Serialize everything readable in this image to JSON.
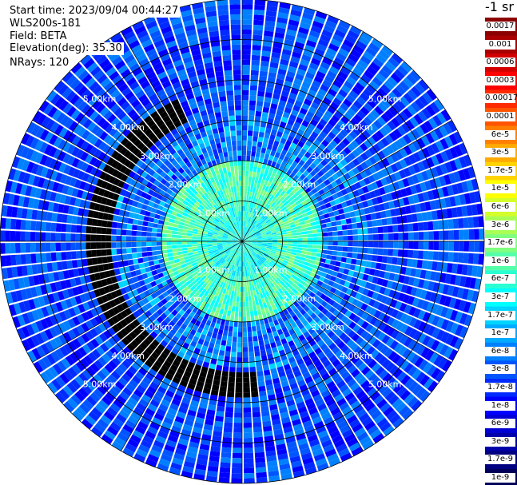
{
  "info": {
    "start_time": "Start time: 2023/09/04 00:44:27",
    "instrument": "WLS200s-181",
    "field": "Field: BETA",
    "elevation": "Elevation(deg): 35.30",
    "nrays": "NRays: 120"
  },
  "chart_data": {
    "type": "heatmap",
    "projection": "polar PPI scan",
    "field": "BETA",
    "n_rays": 120,
    "elevation_deg": 35.3,
    "range_unit": "km",
    "range_max_km": 6.0,
    "range_rings_km": [
      1,
      2,
      3,
      4,
      5
    ],
    "ring_labels": [
      "1.00km",
      "2.00km",
      "3.00km",
      "4.00km",
      "5.00km"
    ],
    "label_azimuths_deg": [
      45,
      135,
      225,
      315
    ],
    "spoke_azimuths_deg": [
      0,
      30,
      60,
      90,
      120,
      150,
      180,
      210,
      240,
      270,
      300,
      330
    ],
    "features": {
      "high_beta_arc": {
        "range_km": 3.55,
        "azimuth_from_deg": 175,
        "azimuth_to_deg": 335,
        "value": "1e-4"
      },
      "background": {
        "value": "1.7e-8"
      },
      "inner_region": {
        "range_to_km": 2.0,
        "value": "1e-6"
      },
      "near_field": {
        "range_to_km": 0.9,
        "value": "6e-7"
      }
    },
    "colorbar": {
      "title": "-1 sr",
      "labels": [
        "0.0017",
        "0.001",
        "0.0006",
        "0.0003",
        "0.00017",
        "0.0001",
        "6e-5",
        "3e-5",
        "1.7e-5",
        "1e-5",
        "6e-6",
        "3e-6",
        "1.7e-6",
        "1e-6",
        "6e-7",
        "3e-7",
        "1.7e-7",
        "1e-7",
        "6e-8",
        "3e-8",
        "1.7e-8",
        "1e-8",
        "6e-9",
        "3e-9",
        "1.7e-9",
        "1e-9"
      ],
      "colors": [
        "#8b0000",
        "#aa0000",
        "#d40000",
        "#ff0000",
        "#ff2a00",
        "#ff5500",
        "#ff8000",
        "#ffaa00",
        "#ffd400",
        "#ffff00",
        "#d4ff2a",
        "#aaff55",
        "#80ff80",
        "#55ffaa",
        "#2affd4",
        "#00ffff",
        "#00d4ff",
        "#00aaff",
        "#0080ff",
        "#0055ff",
        "#002aff",
        "#0000ff",
        "#0000d4",
        "#0000aa",
        "#000080",
        "#00005a"
      ]
    }
  }
}
